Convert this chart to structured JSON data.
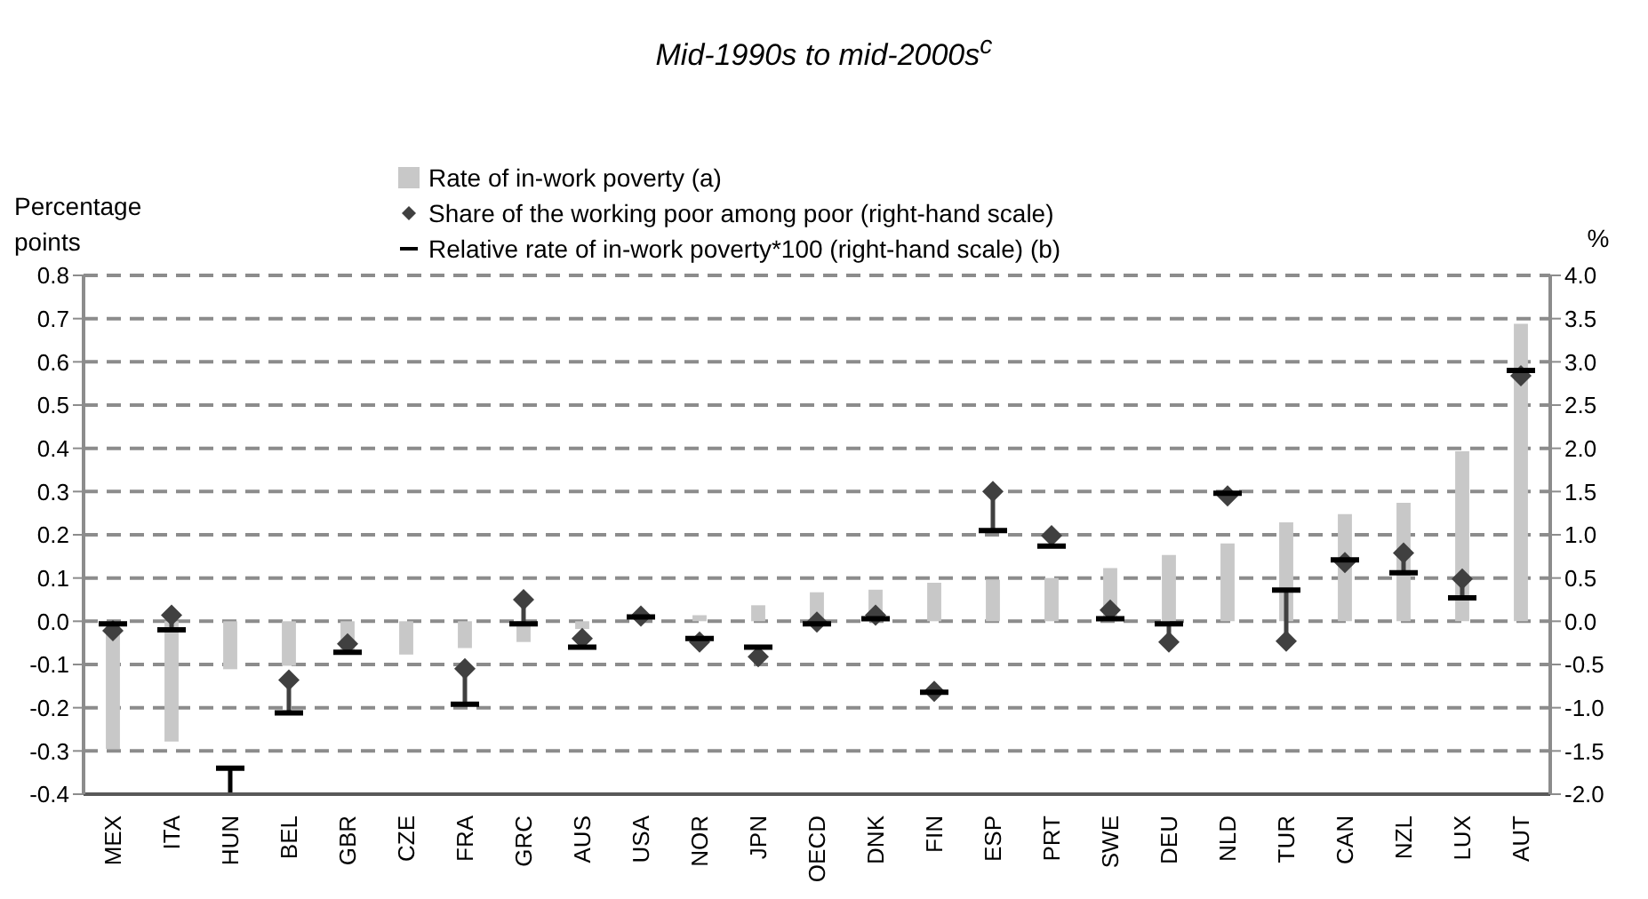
{
  "chart_data": {
    "type": "bar",
    "title": "Mid-1990s to mid-2000s$^{c}$",
    "ylabel": "Percentage points",
    "y2label": "%",
    "categories": [
      "MEX",
      "ITA",
      "HUN",
      "BEL",
      "GBR",
      "CZE",
      "FRA",
      "GRC",
      "AUS",
      "USA",
      "NOR",
      "JPN",
      "OECD",
      "DNK",
      "FIN",
      "ESP",
      "PRT",
      "SWE",
      "DEU",
      "NLD",
      "TUR",
      "CAN",
      "NZL",
      "LUX",
      "AUT"
    ],
    "series": [
      {
        "name": "Rate of in-work poverty (a)",
        "color": "#c8c8c8",
        "values": [
          -0.295,
          -0.278,
          -0.111,
          -0.103,
          -0.073,
          -0.077,
          -0.062,
          -0.048,
          -0.018,
          0.0,
          0.014,
          0.037,
          0.067,
          0.073,
          0.089,
          0.096,
          0.1,
          0.123,
          0.153,
          0.18,
          0.229,
          0.248,
          0.274,
          0.393,
          0.688
        ]
      },
      {
        "name": "Share of the working poor among poor (right-hand scale)",
        "type": "scatter",
        "marker": "diamond",
        "axis": "y2",
        "color": "#404040",
        "values": [
          -0.11,
          0.07,
          null,
          -0.68,
          -0.26,
          null,
          -0.55,
          0.25,
          -0.2,
          0.06,
          -0.24,
          -0.41,
          -0.01,
          0.07,
          -0.81,
          1.5,
          0.99,
          0.13,
          -0.24,
          1.45,
          -0.23,
          0.68,
          0.79,
          0.49,
          2.84
        ],
        "errors": [
          [
            -0.11,
            -0.03
          ],
          [
            -0.1,
            0.07
          ],
          null,
          [
            -1.06,
            -0.68
          ],
          [
            -0.36,
            -0.26
          ],
          null,
          [
            -0.96,
            -0.55
          ],
          [
            -0.03,
            0.25
          ],
          [
            -0.3,
            -0.2
          ],
          null,
          null,
          [
            -0.41,
            -0.3
          ],
          null,
          null,
          null,
          [
            1.05,
            1.5
          ],
          [
            0.87,
            0.99
          ],
          [
            0.03,
            0.13
          ],
          [
            -0.24,
            -0.03
          ],
          null,
          [
            -0.23,
            0.36
          ],
          null,
          [
            0.56,
            0.79
          ],
          [
            0.27,
            0.49
          ],
          null
        ]
      },
      {
        "name": "Relative rate of in-work poverty*100 (right-hand scale) (b)",
        "type": "scatter",
        "axis": "y2",
        "color": "#000000",
        "values": [
          -0.03,
          -0.1,
          -1.7,
          -1.06,
          -0.36,
          null,
          -0.96,
          -0.03,
          -0.3,
          0.05,
          -0.2,
          -0.3,
          -0.03,
          0.03,
          -0.82,
          1.05,
          0.87,
          0.03,
          -0.03,
          1.48,
          0.36,
          0.71,
          0.56,
          0.27,
          2.9
        ],
        "errors": [
          null,
          null,
          [
            -2,
            -1.7
          ],
          null,
          null,
          null,
          null,
          null,
          null,
          null,
          null,
          null,
          null,
          null,
          null,
          null,
          null,
          null,
          null,
          null,
          null,
          null,
          null,
          null,
          null
        ]
      }
    ],
    "ylim": [
      -0.4,
      0.8
    ],
    "yticks": [
      -0.4,
      -0.3,
      -0.2,
      -0.1,
      {
        "value": 0,
        "label": "0.0"
      },
      0.1,
      0.2,
      0.3,
      0.4,
      0.5,
      0.6,
      0.7,
      0.8
    ],
    "y2lim": [
      -2,
      4
    ],
    "y2ticks": [
      {
        "value": -2,
        "label": "-2.0"
      },
      {
        "value": -1.5,
        "label": "-1.5"
      },
      {
        "value": -1,
        "label": "-1.0"
      },
      {
        "value": -0.5,
        "label": "-0.5"
      },
      {
        "value": 0,
        "label": "0.0"
      },
      {
        "value": 0.5,
        "label": "0.5"
      },
      {
        "value": 1,
        "label": "1.0"
      },
      {
        "value": 1.5,
        "label": "1.5"
      },
      {
        "value": 2,
        "label": "2.0"
      },
      {
        "value": 2.5,
        "label": "2.5"
      },
      {
        "value": 3,
        "label": "3.0"
      },
      {
        "value": 3.5,
        "label": "3.5"
      },
      {
        "value": 4,
        "label": "4.0"
      }
    ],
    "grid": "y",
    "legend": "top"
  }
}
